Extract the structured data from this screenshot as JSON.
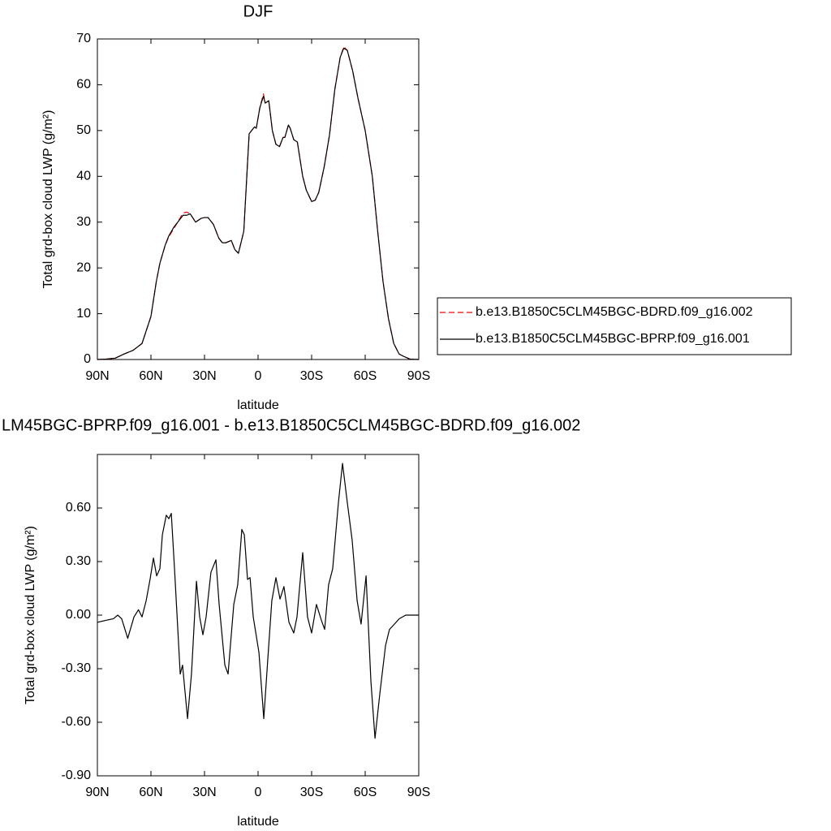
{
  "chart_data": [
    {
      "type": "line",
      "title": "DJF",
      "xlabel": "latitude",
      "ylabel": "Total grd-box cloud LWP (g/m²)",
      "x": [
        90,
        85,
        80,
        75,
        70,
        65,
        60,
        57,
        55,
        52,
        50,
        47,
        45,
        42,
        40,
        38,
        35,
        32,
        30,
        28,
        25,
        22,
        20,
        18,
        15,
        13,
        11,
        8,
        5,
        2,
        1,
        -1,
        -3,
        -4,
        -6,
        -8,
        -10,
        -12,
        -14,
        -15,
        -17,
        -18,
        -20,
        -22,
        -25,
        -27,
        -30,
        -32,
        -34,
        -37,
        -40,
        -43,
        -46,
        -48,
        -50,
        -53,
        -56,
        -60,
        -64,
        -67,
        -70,
        -73,
        -76,
        -79,
        -82,
        -85,
        -90
      ],
      "series": [
        {
          "name": "b.e13.B1850C5CLM45BGC-BDRD.f09_g16.002",
          "color": "#ff0000",
          "linestyle": "dashed",
          "values": [
            0,
            0.1,
            0.3,
            1.2,
            2.0,
            3.5,
            9.4,
            17,
            21,
            25,
            26.8,
            28.7,
            30,
            32,
            32.2,
            31.8,
            30,
            30.8,
            31,
            31,
            29.5,
            26.5,
            25.5,
            25.5,
            26,
            24,
            23.2,
            28,
            49.3,
            50.8,
            50.5,
            55,
            58,
            56,
            56.5,
            50,
            47,
            46.5,
            48.5,
            48.5,
            51.2,
            50.5,
            48,
            47.5,
            40,
            37,
            34.5,
            34.8,
            36.5,
            42,
            49,
            59,
            66,
            68.3,
            67.5,
            63,
            57,
            50,
            40,
            28,
            17,
            9,
            3.5,
            1.2,
            0.6,
            0.1,
            0
          ]
        },
        {
          "name": "b.e13.B1850C5CLM45BGC-BPRP.f09_g16.001",
          "color": "#000000",
          "linestyle": "solid",
          "values": [
            0,
            0.1,
            0.3,
            1.2,
            2.0,
            3.5,
            9.4,
            17,
            21,
            25,
            27,
            29,
            30,
            31.5,
            31.5,
            31.8,
            30,
            30.8,
            31,
            31,
            29.5,
            26.5,
            25.5,
            25.5,
            26,
            24,
            23.2,
            28,
            49.3,
            50.8,
            50.5,
            55,
            57.5,
            56,
            56.5,
            50,
            47,
            46.5,
            48.5,
            48.5,
            51.2,
            50.5,
            48,
            47.5,
            40,
            37,
            34.5,
            34.8,
            36.5,
            42,
            49,
            59,
            66,
            68,
            67.5,
            63,
            57,
            50,
            40,
            28,
            17,
            9,
            3.5,
            1.2,
            0.6,
            0.1,
            0
          ]
        }
      ],
      "xlim": [
        90,
        -90
      ],
      "xticks": [
        {
          "value": 90,
          "label": "90N"
        },
        {
          "value": 60,
          "label": "60N"
        },
        {
          "value": 30,
          "label": "30N"
        },
        0,
        {
          "value": -30,
          "label": "30S"
        },
        {
          "value": -60,
          "label": "60S"
        },
        {
          "value": -90,
          "label": "90S"
        }
      ],
      "ylim": [
        0,
        70
      ],
      "yticks": [
        0,
        10,
        20,
        30,
        40,
        50,
        60,
        70
      ],
      "legend": "right"
    },
    {
      "type": "line",
      "title": "LM45BGC-BPRP.f09_g16.001 - b.e13.B1850C5CLM45BGC-BDRD.f09_g16.002",
      "xlabel": "latitude",
      "ylabel": "Total grd-box cloud LWP (g/m²)",
      "x": [
        90,
        85.5,
        81,
        78.6,
        76.4,
        73,
        69.5,
        67,
        65,
        62.7,
        60.5,
        58.6,
        56.8,
        55,
        53.6,
        51.4,
        50,
        48.6,
        46.8,
        43.6,
        42.3,
        39.5,
        37.3,
        34.5,
        32.7,
        30.9,
        29.1,
        26.4,
        23.6,
        21.8,
        18.6,
        16.8,
        13.6,
        11.4,
        9.1,
        7.7,
        5.9,
        4.5,
        2.7,
        -0.5,
        -3.2,
        -5.5,
        -7.7,
        -10,
        -12.3,
        -14.5,
        -17.3,
        -20,
        -21.8,
        -25,
        -27.7,
        -30,
        -32.7,
        -35.5,
        -37.3,
        -39.5,
        -41.8,
        -45,
        -47.3,
        -50,
        -52.7,
        -55.5,
        -57.7,
        -60.5,
        -63.2,
        -65.5,
        -68.2,
        -71.4,
        -73.6,
        -76.4,
        -79.1,
        -82.7,
        -90
      ],
      "series": [
        {
          "color": "#000000",
          "linestyle": "solid",
          "values": [
            -0.04,
            -0.03,
            -0.02,
            0,
            -0.02,
            -0.13,
            -0.01,
            0.03,
            -0.01,
            0.08,
            0.2,
            0.32,
            0.22,
            0.26,
            0.45,
            0.56,
            0.54,
            0.57,
            0.26,
            -0.33,
            -0.28,
            -0.58,
            -0.33,
            0.19,
            -0.01,
            -0.11,
            -0.01,
            0.24,
            0.31,
            0.06,
            -0.28,
            -0.33,
            0.06,
            0.17,
            0.48,
            0.45,
            0.2,
            0.21,
            -0.01,
            -0.21,
            -0.58,
            -0.24,
            0.08,
            0.21,
            0.09,
            0.16,
            -0.04,
            -0.1,
            -0.01,
            0.35,
            -0.01,
            -0.1,
            0.06,
            -0.03,
            -0.08,
            0.17,
            0.26,
            0.63,
            0.85,
            0.63,
            0.42,
            0.08,
            -0.05,
            0.22,
            -0.37,
            -0.69,
            -0.44,
            -0.17,
            -0.08,
            -0.05,
            -0.02,
            0,
            0
          ]
        }
      ],
      "xlim": [
        90,
        -90
      ],
      "xticks": [
        {
          "value": 90,
          "label": "90N"
        },
        {
          "value": 60,
          "label": "60N"
        },
        {
          "value": 30,
          "label": "30N"
        },
        0,
        {
          "value": -30,
          "label": "30S"
        },
        {
          "value": -60,
          "label": "60S"
        },
        {
          "value": -90,
          "label": "90S"
        }
      ],
      "ylim": [
        -0.9,
        0.9
      ],
      "yticks": [
        {
          "value": -0.9,
          "label": "-0.90"
        },
        {
          "value": -0.6,
          "label": "-0.60"
        },
        {
          "value": -0.3,
          "label": "-0.30"
        },
        {
          "value": 0,
          "label": "0.00"
        },
        {
          "value": 0.3,
          "label": "0.30"
        },
        {
          "value": 0.6,
          "label": "0.60"
        }
      ]
    }
  ]
}
